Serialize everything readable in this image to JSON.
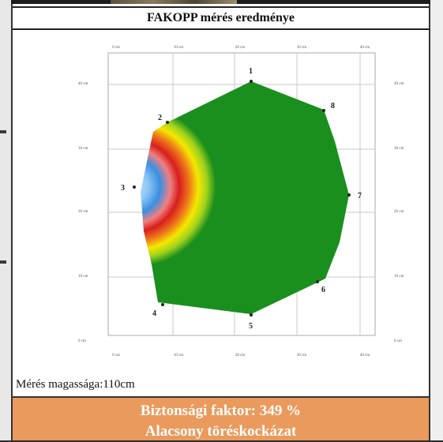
{
  "title": "FAKOPP mérés eredménye",
  "axis": {
    "top_ticks": [
      "0 cm",
      "10 cm",
      "20 cm",
      "30 cm",
      "40 cm"
    ],
    "bottom_ticks": [
      "0 cm",
      "10 cm",
      "20 cm",
      "30 cm",
      "40 cm"
    ],
    "left_ticks": [
      "40 cm",
      "30 cm",
      "20 cm",
      "10 cm",
      "0 cm"
    ],
    "right_ticks": [
      "40 cm",
      "30 cm",
      "20 cm",
      "10 cm",
      "0 cm"
    ]
  },
  "sensors": [
    "1",
    "2",
    "3",
    "4",
    "5",
    "6",
    "7",
    "8"
  ],
  "measurement_height": "Mérés magassága:110cm",
  "safety_factor": "Biztonsági faktor: 349 %",
  "risk": "Alacsony töréskockázat",
  "colors": {
    "healthy": "#1a8f1e",
    "decay_yellow": "#f4e800",
    "decay_red": "#d81e1e",
    "cavity_blue": "#3a8fe0",
    "result_bg": "#e99a5c"
  }
}
